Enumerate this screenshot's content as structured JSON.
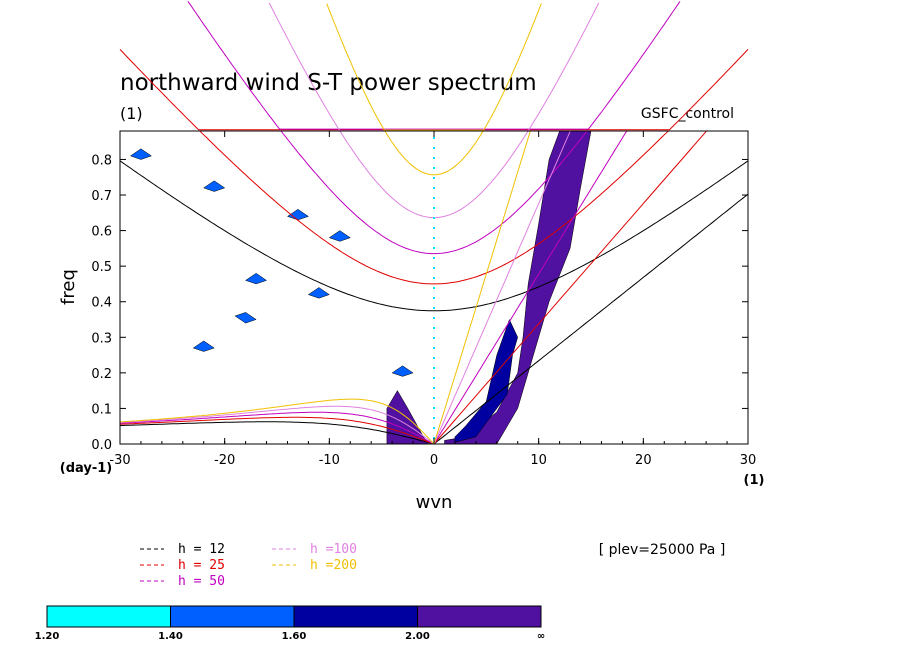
{
  "chart_data": {
    "type": "heatmap",
    "title": "northward wind S-T power spectrum",
    "subtitle_left": "(1)",
    "subtitle_right": "GSFC_control",
    "xlabel": "wvn",
    "ylabel": "freq",
    "x_unit_label": "(1)",
    "y_unit_label": "(day-1)",
    "xlim": [
      -30,
      30
    ],
    "ylim": [
      0,
      0.88
    ],
    "xticks": [
      "-30",
      "-20",
      "-10",
      "0",
      "10",
      "20",
      "30"
    ],
    "yticks": [
      "0.0",
      "0.1",
      "0.2",
      "0.3",
      "0.4",
      "0.5",
      "0.6",
      "0.7",
      "0.8"
    ],
    "annotation": "[ plev=25000 Pa ]",
    "dispersion_curves": [
      {
        "label": "h = 12",
        "color": "#000000"
      },
      {
        "label": "h = 25",
        "color": "#e00000"
      },
      {
        "label": "h = 50",
        "color": "#c000c0"
      },
      {
        "label": "h =100",
        "color": "#e080e0"
      },
      {
        "label": "h =200",
        "color": "#f0c000"
      }
    ],
    "colorbar": {
      "levels": [
        "1.20",
        "1.40",
        "1.60",
        "2.00",
        "∞"
      ],
      "colors": [
        "#00ffff",
        "#0060ff",
        "#0000a0",
        "#5010a0"
      ]
    },
    "power_regions": [
      {
        "name": "kelvin-band",
        "level": 3,
        "points": [
          [
            1,
            0.01
          ],
          [
            3,
            0.02
          ],
          [
            6,
            0.09
          ],
          [
            8,
            0.2
          ],
          [
            8.5,
            0.3
          ],
          [
            9,
            0.45
          ],
          [
            10,
            0.62
          ],
          [
            11,
            0.8
          ],
          [
            12,
            0.88
          ],
          [
            15,
            0.88
          ],
          [
            14,
            0.72
          ],
          [
            13,
            0.55
          ],
          [
            11,
            0.4
          ],
          [
            9.5,
            0.25
          ],
          [
            8,
            0.1
          ],
          [
            6,
            0.0
          ],
          [
            1,
            0.0
          ]
        ]
      },
      {
        "name": "kelvin-core",
        "level": 2,
        "points": [
          [
            2,
            0.005
          ],
          [
            4,
            0.02
          ],
          [
            5,
            0.06
          ],
          [
            7,
            0.14
          ],
          [
            7.5,
            0.25
          ],
          [
            8,
            0.3
          ],
          [
            7.2,
            0.35
          ],
          [
            6,
            0.25
          ],
          [
            5,
            0.12
          ],
          [
            3,
            0.05
          ],
          [
            2,
            0.02
          ]
        ]
      },
      {
        "name": "mrg-low",
        "level": 3,
        "points": [
          [
            -4.5,
            0.0
          ],
          [
            -4.5,
            0.1
          ],
          [
            -3.5,
            0.15
          ],
          [
            -2.5,
            0.1
          ],
          [
            -1,
            0.02
          ],
          [
            -0.5,
            0.0
          ]
        ]
      },
      {
        "name": "blob-1",
        "level": 1,
        "points": [
          [
            -18,
            0.46
          ],
          [
            -17,
            0.48
          ],
          [
            -16,
            0.46
          ],
          [
            -17,
            0.45
          ]
        ]
      },
      {
        "name": "blob-2",
        "level": 1,
        "points": [
          [
            -23,
            0.27
          ],
          [
            -22,
            0.29
          ],
          [
            -21,
            0.27
          ],
          [
            -22,
            0.26
          ]
        ]
      },
      {
        "name": "blob-3",
        "level": 1,
        "points": [
          [
            -19,
            0.36
          ],
          [
            -18,
            0.37
          ],
          [
            -17,
            0.35
          ],
          [
            -18,
            0.34
          ]
        ]
      },
      {
        "name": "blob-4",
        "level": 1,
        "points": [
          [
            -12,
            0.42
          ],
          [
            -11,
            0.44
          ],
          [
            -10,
            0.42
          ],
          [
            -11,
            0.41
          ]
        ]
      },
      {
        "name": "blob-5",
        "level": 1,
        "points": [
          [
            -14,
            0.64
          ],
          [
            -13,
            0.66
          ],
          [
            -12,
            0.64
          ],
          [
            -13,
            0.63
          ]
        ]
      },
      {
        "name": "blob-6",
        "level": 1,
        "points": [
          [
            -22,
            0.72
          ],
          [
            -21,
            0.74
          ],
          [
            -20,
            0.72
          ],
          [
            -21,
            0.71
          ]
        ]
      },
      {
        "name": "blob-7",
        "level": 1,
        "points": [
          [
            -29,
            0.81
          ],
          [
            -28,
            0.83
          ],
          [
            -27,
            0.81
          ],
          [
            -28,
            0.8
          ]
        ]
      },
      {
        "name": "blob-8",
        "level": 1,
        "points": [
          [
            -4,
            0.2
          ],
          [
            -3,
            0.22
          ],
          [
            -2,
            0.2
          ],
          [
            -3,
            0.19
          ]
        ]
      },
      {
        "name": "blob-9",
        "level": 1,
        "points": [
          [
            -10,
            0.58
          ],
          [
            -9,
            0.6
          ],
          [
            -8,
            0.58
          ],
          [
            -9,
            0.57
          ]
        ]
      }
    ]
  }
}
